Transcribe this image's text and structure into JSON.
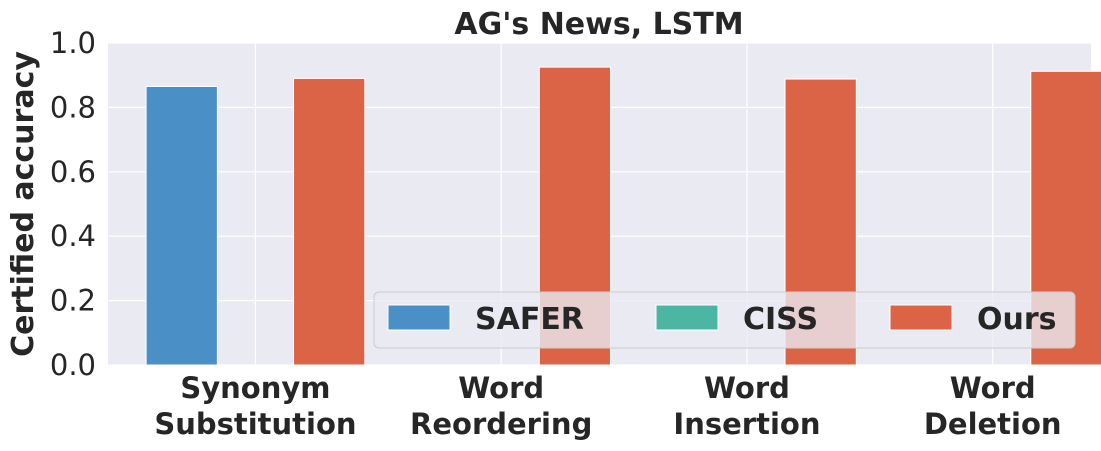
{
  "chart_data": {
    "type": "bar",
    "title": "AG's News, LSTM",
    "ylabel": "Certified accuracy",
    "xlabel": "",
    "ylim": [
      0,
      1.0
    ],
    "yticks": [
      "0.0",
      "0.2",
      "0.4",
      "0.6",
      "0.8",
      "1.0"
    ],
    "categories": [
      [
        "Synonym",
        "Substitution"
      ],
      [
        "Word",
        "Reordering"
      ],
      [
        "Word",
        "Insertion"
      ],
      [
        "Word",
        "Deletion"
      ]
    ],
    "series": [
      {
        "name": "SAFER",
        "color": "#4a8fc5",
        "values": [
          0.865,
          null,
          null,
          null
        ]
      },
      {
        "name": "CISS",
        "color": "#4cb5a4",
        "values": [
          null,
          null,
          null,
          null
        ]
      },
      {
        "name": "Ours",
        "color": "#dc6446",
        "values": [
          0.89,
          0.925,
          0.888,
          0.912
        ]
      }
    ],
    "grid": true,
    "legend_position": "lower-right"
  }
}
